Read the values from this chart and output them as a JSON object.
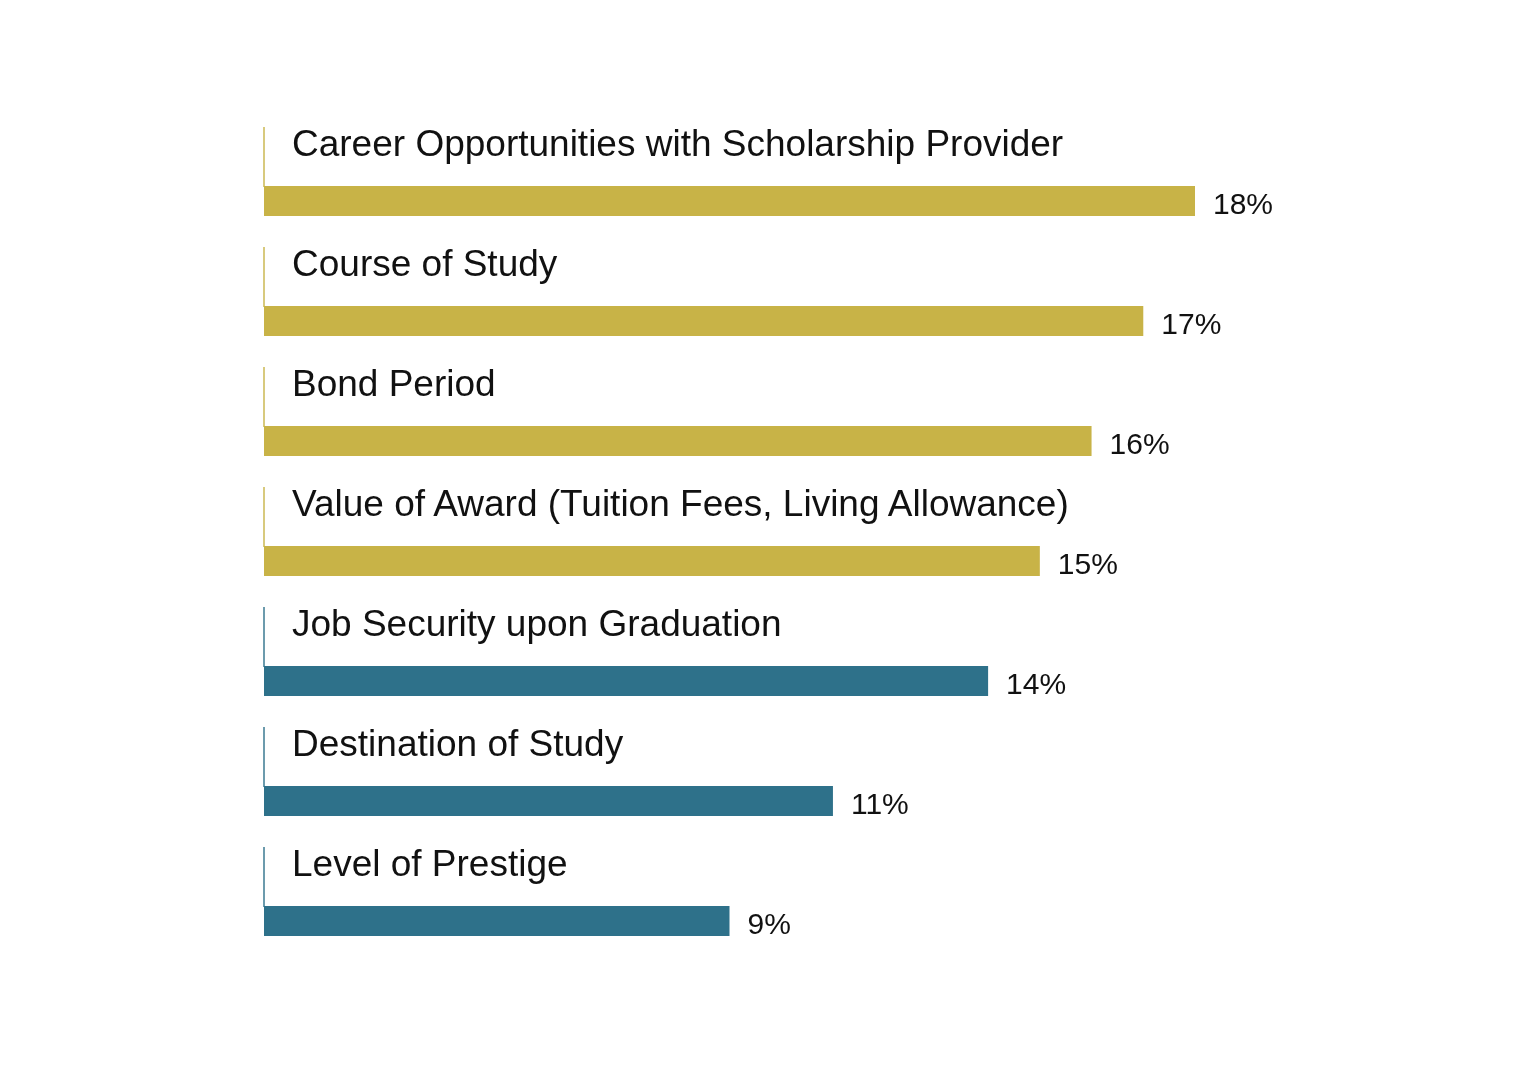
{
  "chart_data": {
    "type": "bar",
    "orientation": "horizontal",
    "categories": [
      "Career Opportunities with Scholarship Provider",
      "Course of Study",
      "Bond Period",
      "Value of Award (Tuition Fees, Living Allowance)",
      "Job Security upon Graduation",
      "Destination of Study",
      "Level of Prestige"
    ],
    "values": [
      18,
      17,
      16,
      15,
      14,
      11,
      9
    ],
    "colors": [
      "#c8b347",
      "#c8b347",
      "#c8b347",
      "#c8b347",
      "#2e718a",
      "#2e718a",
      "#2e718a"
    ],
    "value_labels": [
      "18%",
      "17%",
      "16%",
      "15%",
      "14%",
      "11%",
      "9%"
    ],
    "tick_labels": false
  }
}
